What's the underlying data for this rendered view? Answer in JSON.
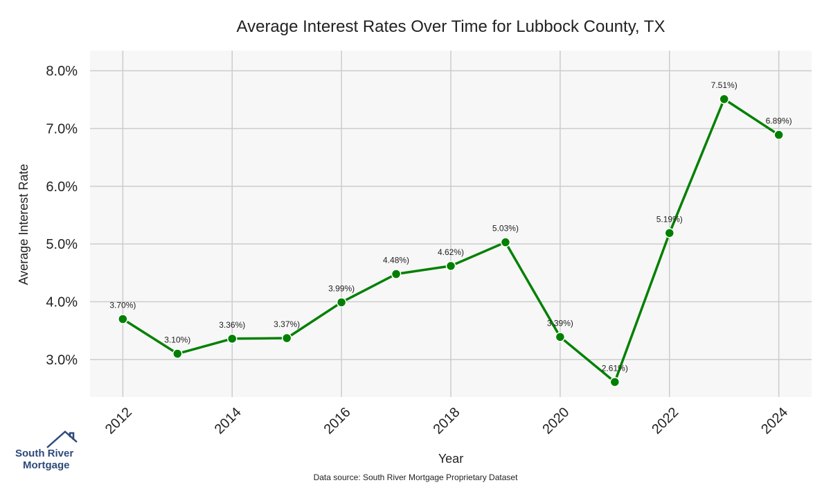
{
  "chart_data": {
    "type": "line",
    "title": "Average Interest Rates Over Time for Lubbock County, TX",
    "xlabel": "Year",
    "ylabel": "Average Interest Rate",
    "x": [
      2012,
      2013,
      2014,
      2015,
      2016,
      2017,
      2018,
      2019,
      2020,
      2021,
      2022,
      2023,
      2024
    ],
    "series": [
      {
        "values": [
          3.7,
          3.1,
          3.36,
          3.37,
          3.99,
          4.48,
          4.62,
          5.03,
          3.39,
          2.61,
          5.19,
          7.51,
          6.89
        ],
        "color": "#008000"
      }
    ],
    "data_labels": [
      "3.70%)",
      "3.10%)",
      "3.36%)",
      "3.37%)",
      "3.99%)",
      "4.48%)",
      "4.62%)",
      "5.03%)",
      "3.39%)",
      "2.61%)",
      "5.19%)",
      "7.51%)",
      "6.89%)"
    ],
    "x_ticks": [
      "2012",
      "2014",
      "2016",
      "2018",
      "2020",
      "2022",
      "2024"
    ],
    "y_ticks": [
      "3.0%",
      "4.0%",
      "5.0%",
      "6.0%",
      "7.0%",
      "8.0%"
    ],
    "xlim": [
      2011.4,
      2024.6
    ],
    "ylim": [
      2.35,
      8.35
    ],
    "grid": true,
    "plot_background": "#f7f7f7",
    "grid_color": "#cccccc"
  },
  "source_note": "Data source: South River Mortgage Proprietary Dataset",
  "logo": {
    "line1": "South River",
    "line2": "Mortgage",
    "icon": "house-roof-icon",
    "color": "#2f4a7a"
  }
}
